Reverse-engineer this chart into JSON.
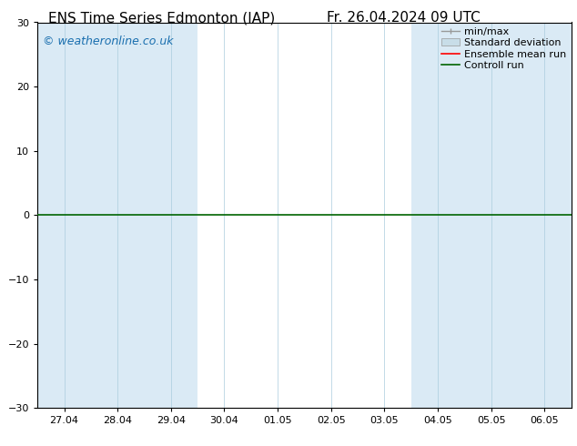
{
  "title_left": "ENS Time Series Edmonton (IAP)",
  "title_right": "Fr. 26.04.2024 09 UTC",
  "watermark": "© weatheronline.co.uk",
  "ylim": [
    -30,
    30
  ],
  "yticks": [
    -30,
    -20,
    -10,
    0,
    10,
    20,
    30
  ],
  "plot_bg": "#ffffff",
  "shaded_col": "#daeaf5",
  "zero_line_color": "#006400",
  "legend_entries": [
    "min/max",
    "Standard deviation",
    "Ensemble mean run",
    "Controll run"
  ],
  "legend_colors": [
    "#888888",
    "#bbccdd",
    "#ff0000",
    "#006400"
  ],
  "x_tick_labels": [
    "27.04",
    "28.04",
    "29.04",
    "30.04",
    "01.05",
    "02.05",
    "03.05",
    "04.05",
    "05.05",
    "06.05"
  ],
  "shaded_ranges": [
    [
      0,
      2
    ],
    [
      7,
      9
    ]
  ],
  "n_columns": 10,
  "title_fontsize": 11,
  "watermark_fontsize": 9,
  "tick_fontsize": 8,
  "legend_fontsize": 8
}
